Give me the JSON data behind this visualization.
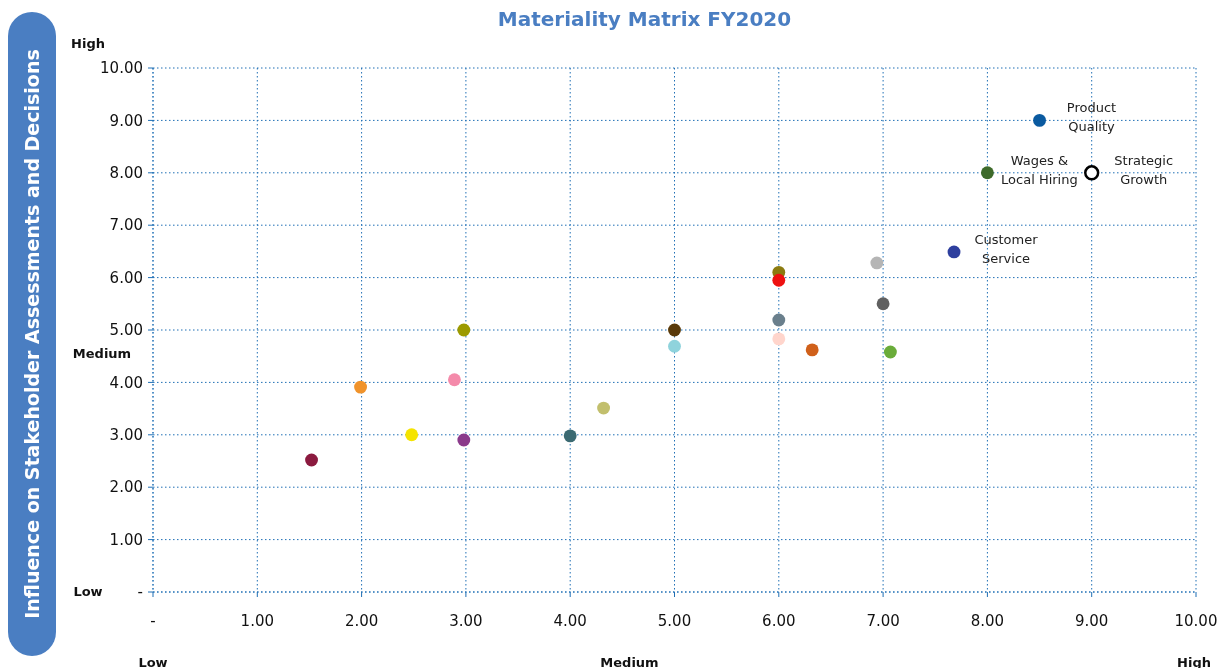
{
  "chart_data": {
    "type": "scatter",
    "title": "Materiality Matrix FY2020",
    "ylabel": "Influence on Stakeholder Assessments and Decisions",
    "x": [
      1.52,
      1.99,
      2.48,
      2.89,
      2.98,
      2.98,
      4.0,
      4.32,
      5.0,
      5.0,
      6.0,
      6.0,
      6.0,
      6.0,
      6.32,
      6.94,
      7.0,
      7.07,
      7.68,
      8.0,
      8.5,
      9.0
    ],
    "values": [
      2.52,
      3.91,
      3.0,
      4.05,
      5.0,
      2.9,
      2.98,
      3.51,
      5.0,
      4.69,
      6.1,
      5.95,
      5.19,
      4.83,
      4.62,
      6.28,
      5.5,
      4.58,
      6.49,
      8.0,
      9.0,
      8.0
    ],
    "colors": [
      "#8b1a3f",
      "#f0932b",
      "#f5e400",
      "#f48aaa",
      "#9c9a00",
      "#8b3a8b",
      "#3b6a72",
      "#c2bf6d",
      "#5a3a0a",
      "#8fd3dc",
      "#8b7b10",
      "#ee1111",
      "#6a7f8c",
      "#ffd5cc",
      "#d0601a",
      "#b5b5b5",
      "#606060",
      "#6aac3a",
      "#2e3f9e",
      "#3e6a2a",
      "#0a5aa0",
      "#ffffff"
    ],
    "marker": "circle",
    "grid": true,
    "xlim": [
      0,
      10
    ],
    "ylim": [
      0,
      10
    ],
    "xticks": [
      {
        "value": 0,
        "label": "-"
      },
      {
        "value": 1,
        "label": "1.00"
      },
      {
        "value": 2,
        "label": "2.00"
      },
      {
        "value": 3,
        "label": "3.00"
      },
      {
        "value": 4,
        "label": "4.00"
      },
      {
        "value": 5,
        "label": "5.00"
      },
      {
        "value": 6,
        "label": "6.00"
      },
      {
        "value": 7,
        "label": "7.00"
      },
      {
        "value": 8,
        "label": "8.00"
      },
      {
        "value": 9,
        "label": "9.00"
      },
      {
        "value": 10,
        "label": "10.00"
      }
    ],
    "yticks": [
      {
        "value": 0,
        "label": "-"
      },
      {
        "value": 1,
        "label": "1.00"
      },
      {
        "value": 2,
        "label": "2.00"
      },
      {
        "value": 3,
        "label": "3.00"
      },
      {
        "value": 4,
        "label": "4.00"
      },
      {
        "value": 5,
        "label": "5.00"
      },
      {
        "value": 6,
        "label": "6.00"
      },
      {
        "value": 7,
        "label": "7.00"
      },
      {
        "value": 8,
        "label": "8.00"
      },
      {
        "value": 9,
        "label": "9.00"
      },
      {
        "value": 10,
        "label": "10.00"
      }
    ],
    "annotations": [
      {
        "text": "Product\nQuality",
        "x": 8.5,
        "y": 9.0
      },
      {
        "text": "Wages &\nLocal Hiring",
        "x": 8.0,
        "y": 8.0
      },
      {
        "text": "Strategic\nGrowth",
        "x": 9.0,
        "y": 8.0
      },
      {
        "text": "Customer\nService",
        "x": 7.68,
        "y": 6.49
      },
      "High",
      "Medium",
      "Low",
      "Low",
      "Medium",
      "High"
    ]
  }
}
